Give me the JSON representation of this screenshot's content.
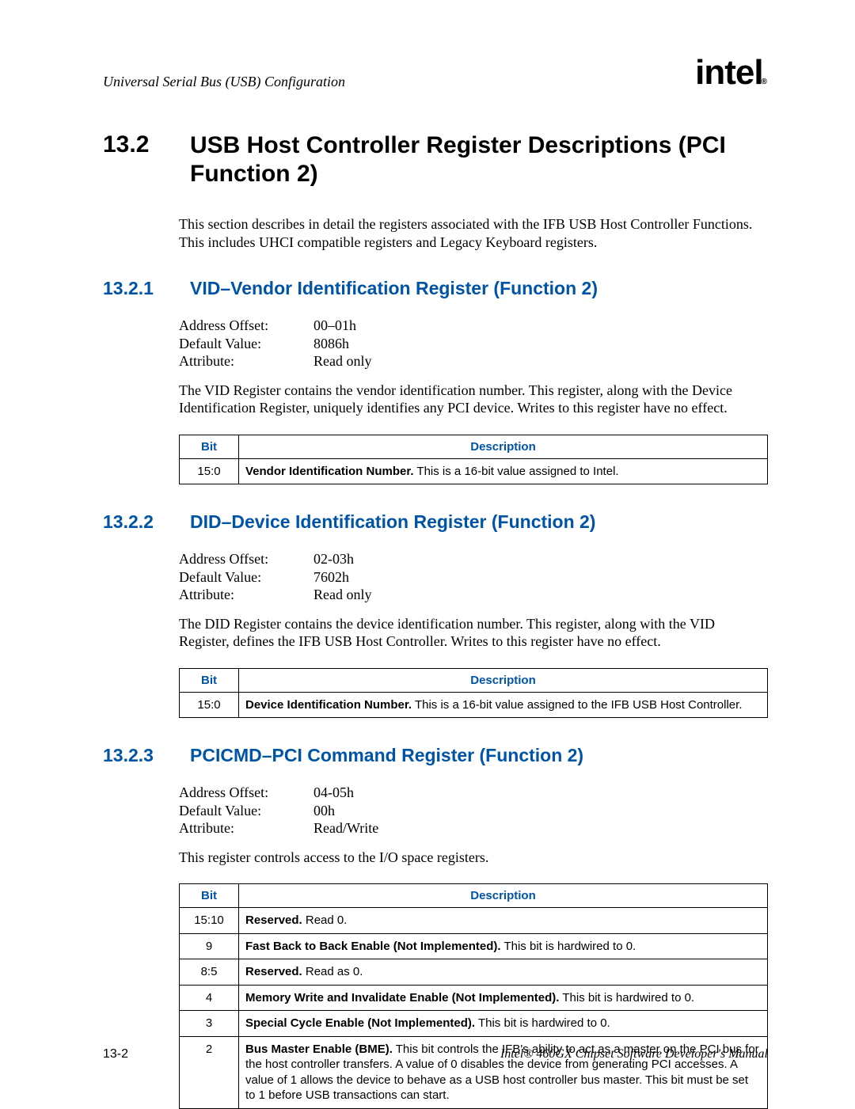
{
  "colors": {
    "heading_blue": "#0054a6",
    "text_black": "#000000",
    "background": "#ffffff",
    "border": "#000000"
  },
  "typography": {
    "body_family": "Times New Roman",
    "heading_family": "Arial",
    "table_family": "Arial",
    "h1_size_pt": 22,
    "h2_size_pt": 17,
    "body_size_pt": 13,
    "table_size_pt": 11
  },
  "header": {
    "running_title": "Universal Serial Bus (USB) Configuration",
    "logo_text": "intel",
    "logo_reg": "®"
  },
  "section": {
    "number": "13.2",
    "title": "USB Host Controller Register Descriptions (PCI Function 2)",
    "intro": "This section describes in detail the registers associated with the IFB USB Host Controller Functions. This includes UHCI compatible registers and Legacy Keyboard registers."
  },
  "subsections": [
    {
      "number": "13.2.1",
      "title": "VID–Vendor Identification Register (Function 2)",
      "attrs": [
        {
          "label": "Address Offset:",
          "value": "00–01h"
        },
        {
          "label": "Default Value:",
          "value": "8086h"
        },
        {
          "label": "Attribute:",
          "value": "Read only"
        }
      ],
      "para": "The VID Register contains the vendor identification number. This register, along with the Device Identification Register, uniquely identifies any PCI device. Writes to this register have no effect.",
      "table": {
        "columns": [
          "Bit",
          "Description"
        ],
        "rows": [
          {
            "bit": "15:0",
            "bold": "Vendor Identification Number.",
            "rest": " This is a 16-bit value assigned to Intel."
          }
        ]
      }
    },
    {
      "number": "13.2.2",
      "title": "DID–Device Identification Register (Function 2)",
      "attrs": [
        {
          "label": "Address Offset:",
          "value": "02-03h"
        },
        {
          "label": "Default Value:",
          "value": "7602h"
        },
        {
          "label": "Attribute:",
          "value": "Read only"
        }
      ],
      "para": "The DID Register contains the device identification number. This register, along with the VID Register, defines the IFB USB Host Controller. Writes to this register have no effect.",
      "table": {
        "columns": [
          "Bit",
          "Description"
        ],
        "rows": [
          {
            "bit": "15:0",
            "bold": "Device Identification Number.",
            "rest": " This is a 16-bit value assigned to the IFB USB Host Controller."
          }
        ]
      }
    },
    {
      "number": "13.2.3",
      "title": "PCICMD–PCI Command Register (Function 2)",
      "attrs": [
        {
          "label": "Address Offset:",
          "value": "04-05h"
        },
        {
          "label": "Default Value:",
          "value": "00h"
        },
        {
          "label": "Attribute:",
          "value": "Read/Write"
        }
      ],
      "para": "This register controls access to the I/O space registers.",
      "table": {
        "columns": [
          "Bit",
          "Description"
        ],
        "rows": [
          {
            "bit": "15:10",
            "bold": "Reserved.",
            "rest": " Read 0."
          },
          {
            "bit": "9",
            "bold": "Fast Back to Back Enable (Not Implemented).",
            "rest": " This bit is hardwired to 0."
          },
          {
            "bit": "8:5",
            "bold": "Reserved.",
            "rest": " Read as 0."
          },
          {
            "bit": "4",
            "bold": "Memory Write and Invalidate Enable (Not Implemented).",
            "rest": " This bit is hardwired to 0."
          },
          {
            "bit": "3",
            "bold": "Special Cycle Enable (Not Implemented).",
            "rest": " This bit is hardwired to 0."
          },
          {
            "bit": "2",
            "bold": "Bus Master Enable (BME).",
            "rest": " This bit controls the IFB's ability to act as a master on the PCI bus for the host controller transfers. A value of 0 disables the device from generating PCI accesses. A value of 1 allows the device to behave as a USB host controller bus master. This bit must be set to 1 before USB transactions can start."
          }
        ]
      }
    }
  ],
  "footer": {
    "page_number": "13-2",
    "manual_title": "Intel® 460GX Chipset Software Developer's Manual"
  }
}
